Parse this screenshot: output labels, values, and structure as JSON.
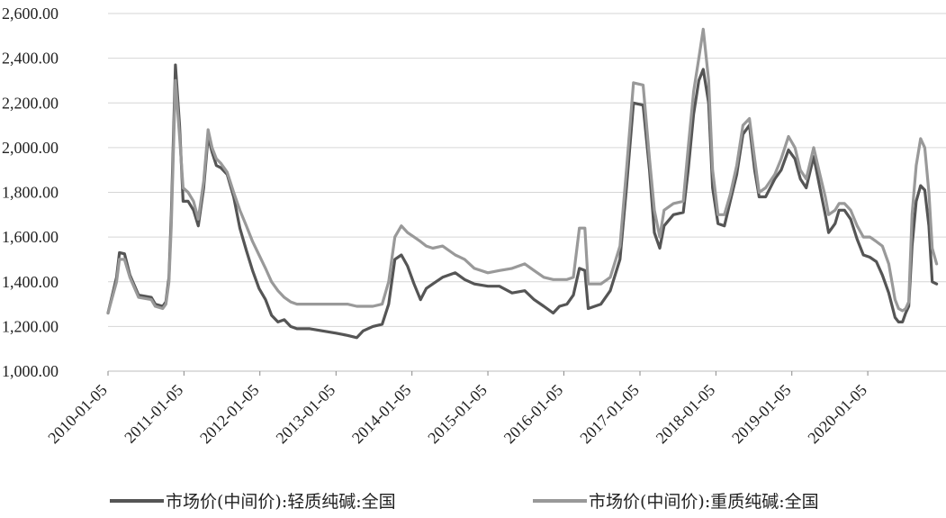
{
  "chart_data": {
    "type": "line",
    "title": "",
    "xlabel": "",
    "ylabel": "",
    "ylim": [
      1000,
      2600
    ],
    "y_ticks": [
      "1,000.00",
      "1,200.00",
      "1,400.00",
      "1,600.00",
      "1,800.00",
      "2,000.00",
      "2,200.00",
      "2,400.00",
      "2,600.00"
    ],
    "x_ticks": [
      "2010-01-05",
      "2011-01-05",
      "2012-01-05",
      "2013-01-05",
      "2014-01-05",
      "2015-01-05",
      "2016-01-05",
      "2017-01-05",
      "2018-01-05",
      "2019-01-05",
      "2020-01-05"
    ],
    "x_range": [
      "2010-01-05",
      "2021-01-15"
    ],
    "grid": true,
    "legend_position": "bottom",
    "series": [
      {
        "name": "市场价(中间价):轻质纯碱:全国",
        "color": "#555555",
        "points": [
          [
            "2010-01-05",
            1260
          ],
          [
            "2010-02-15",
            1420
          ],
          [
            "2010-03-01",
            1530
          ],
          [
            "2010-03-25",
            1525
          ],
          [
            "2010-04-20",
            1430
          ],
          [
            "2010-06-01",
            1340
          ],
          [
            "2010-08-01",
            1330
          ],
          [
            "2010-08-20",
            1300
          ],
          [
            "2010-09-25",
            1290
          ],
          [
            "2010-10-10",
            1310
          ],
          [
            "2010-10-25",
            1420
          ],
          [
            "2010-11-05",
            1700
          ],
          [
            "2010-11-25",
            2370
          ],
          [
            "2010-12-15",
            2100
          ],
          [
            "2011-01-01",
            1760
          ],
          [
            "2011-01-25",
            1760
          ],
          [
            "2011-02-20",
            1720
          ],
          [
            "2011-03-15",
            1650
          ],
          [
            "2011-04-10",
            1820
          ],
          [
            "2011-05-01",
            2050
          ],
          [
            "2011-05-20",
            1980
          ],
          [
            "2011-06-10",
            1920
          ],
          [
            "2011-07-01",
            1910
          ],
          [
            "2011-08-01",
            1880
          ],
          [
            "2011-09-01",
            1780
          ],
          [
            "2011-10-01",
            1640
          ],
          [
            "2011-11-01",
            1540
          ],
          [
            "2011-12-01",
            1450
          ],
          [
            "2012-01-01",
            1370
          ],
          [
            "2012-02-01",
            1320
          ],
          [
            "2012-03-01",
            1250
          ],
          [
            "2012-04-01",
            1220
          ],
          [
            "2012-05-01",
            1230
          ],
          [
            "2012-06-01",
            1200
          ],
          [
            "2012-07-01",
            1190
          ],
          [
            "2012-09-01",
            1190
          ],
          [
            "2012-11-01",
            1180
          ],
          [
            "2013-01-05",
            1170
          ],
          [
            "2013-03-01",
            1160
          ],
          [
            "2013-04-15",
            1150
          ],
          [
            "2013-05-15",
            1180
          ],
          [
            "2013-07-01",
            1200
          ],
          [
            "2013-08-15",
            1210
          ],
          [
            "2013-09-15",
            1300
          ],
          [
            "2013-10-15",
            1500
          ],
          [
            "2013-11-15",
            1520
          ],
          [
            "2013-12-15",
            1470
          ],
          [
            "2014-01-15",
            1390
          ],
          [
            "2014-02-15",
            1320
          ],
          [
            "2014-03-15",
            1370
          ],
          [
            "2014-04-15",
            1390
          ],
          [
            "2014-06-01",
            1420
          ],
          [
            "2014-08-01",
            1440
          ],
          [
            "2014-09-15",
            1410
          ],
          [
            "2014-11-01",
            1390
          ],
          [
            "2015-01-05",
            1380
          ],
          [
            "2015-03-01",
            1380
          ],
          [
            "2015-05-01",
            1350
          ],
          [
            "2015-07-01",
            1360
          ],
          [
            "2015-08-15",
            1320
          ],
          [
            "2015-10-01",
            1290
          ],
          [
            "2015-11-15",
            1260
          ],
          [
            "2015-12-15",
            1290
          ],
          [
            "2016-01-20",
            1300
          ],
          [
            "2016-02-20",
            1340
          ],
          [
            "2016-03-20",
            1460
          ],
          [
            "2016-04-15",
            1450
          ],
          [
            "2016-05-01",
            1280
          ],
          [
            "2016-07-01",
            1300
          ],
          [
            "2016-08-15",
            1360
          ],
          [
            "2016-10-01",
            1500
          ],
          [
            "2016-11-01",
            1820
          ],
          [
            "2016-12-05",
            2200
          ],
          [
            "2017-01-20",
            2190
          ],
          [
            "2017-02-20",
            1900
          ],
          [
            "2017-03-15",
            1620
          ],
          [
            "2017-04-10",
            1550
          ],
          [
            "2017-05-01",
            1650
          ],
          [
            "2017-06-15",
            1700
          ],
          [
            "2017-08-01",
            1710
          ],
          [
            "2017-08-25",
            1900
          ],
          [
            "2017-09-20",
            2150
          ],
          [
            "2017-10-15",
            2300
          ],
          [
            "2017-11-05",
            2350
          ],
          [
            "2017-12-01",
            2200
          ],
          [
            "2017-12-20",
            1820
          ],
          [
            "2018-01-15",
            1660
          ],
          [
            "2018-02-15",
            1650
          ],
          [
            "2018-03-15",
            1760
          ],
          [
            "2018-04-15",
            1880
          ],
          [
            "2018-05-15",
            2060
          ],
          [
            "2018-06-15",
            2100
          ],
          [
            "2018-07-10",
            1900
          ],
          [
            "2018-08-01",
            1780
          ],
          [
            "2018-09-01",
            1780
          ],
          [
            "2018-10-15",
            1860
          ],
          [
            "2018-11-15",
            1900
          ],
          [
            "2018-12-20",
            1990
          ],
          [
            "2019-01-20",
            1950
          ],
          [
            "2019-02-15",
            1860
          ],
          [
            "2019-03-15",
            1820
          ],
          [
            "2019-04-20",
            1960
          ],
          [
            "2019-05-20",
            1820
          ],
          [
            "2019-06-15",
            1700
          ],
          [
            "2019-07-01",
            1620
          ],
          [
            "2019-08-01",
            1660
          ],
          [
            "2019-08-20",
            1720
          ],
          [
            "2019-09-15",
            1720
          ],
          [
            "2019-10-15",
            1680
          ],
          [
            "2019-11-15",
            1590
          ],
          [
            "2019-12-15",
            1520
          ],
          [
            "2020-01-15",
            1510
          ],
          [
            "2020-02-15",
            1490
          ],
          [
            "2020-03-15",
            1430
          ],
          [
            "2020-04-15",
            1350
          ],
          [
            "2020-05-15",
            1240
          ],
          [
            "2020-06-01",
            1220
          ],
          [
            "2020-06-20",
            1220
          ],
          [
            "2020-07-05",
            1260
          ],
          [
            "2020-07-20",
            1290
          ],
          [
            "2020-08-05",
            1560
          ],
          [
            "2020-08-25",
            1760
          ],
          [
            "2020-09-15",
            1830
          ],
          [
            "2020-10-05",
            1810
          ],
          [
            "2020-10-25",
            1650
          ],
          [
            "2020-11-10",
            1400
          ],
          [
            "2020-12-01",
            1390
          ]
        ]
      },
      {
        "name": "市场价(中间价):重质纯碱:全国",
        "color": "#999999",
        "points": [
          [
            "2010-01-05",
            1260
          ],
          [
            "2010-02-15",
            1400
          ],
          [
            "2010-03-01",
            1500
          ],
          [
            "2010-03-25",
            1500
          ],
          [
            "2010-04-20",
            1420
          ],
          [
            "2010-06-01",
            1330
          ],
          [
            "2010-08-01",
            1320
          ],
          [
            "2010-08-20",
            1290
          ],
          [
            "2010-09-25",
            1280
          ],
          [
            "2010-10-10",
            1300
          ],
          [
            "2010-10-25",
            1400
          ],
          [
            "2010-11-05",
            1650
          ],
          [
            "2010-11-25",
            2300
          ],
          [
            "2010-12-15",
            2050
          ],
          [
            "2011-01-01",
            1820
          ],
          [
            "2011-01-25",
            1800
          ],
          [
            "2011-02-20",
            1760
          ],
          [
            "2011-03-15",
            1680
          ],
          [
            "2011-04-10",
            1850
          ],
          [
            "2011-05-01",
            2080
          ],
          [
            "2011-05-20",
            2000
          ],
          [
            "2011-06-10",
            1950
          ],
          [
            "2011-07-01",
            1930
          ],
          [
            "2011-08-01",
            1890
          ],
          [
            "2011-09-01",
            1800
          ],
          [
            "2011-10-01",
            1720
          ],
          [
            "2011-11-01",
            1650
          ],
          [
            "2011-12-01",
            1580
          ],
          [
            "2012-01-01",
            1520
          ],
          [
            "2012-02-01",
            1460
          ],
          [
            "2012-03-01",
            1400
          ],
          [
            "2012-04-01",
            1360
          ],
          [
            "2012-05-01",
            1330
          ],
          [
            "2012-06-01",
            1310
          ],
          [
            "2012-07-01",
            1300
          ],
          [
            "2012-09-01",
            1300
          ],
          [
            "2012-11-01",
            1300
          ],
          [
            "2013-01-05",
            1300
          ],
          [
            "2013-03-01",
            1300
          ],
          [
            "2013-04-15",
            1290
          ],
          [
            "2013-05-15",
            1290
          ],
          [
            "2013-07-01",
            1290
          ],
          [
            "2013-08-15",
            1300
          ],
          [
            "2013-09-15",
            1400
          ],
          [
            "2013-10-15",
            1600
          ],
          [
            "2013-11-15",
            1650
          ],
          [
            "2013-12-15",
            1620
          ],
          [
            "2014-01-15",
            1600
          ],
          [
            "2014-02-15",
            1580
          ],
          [
            "2014-03-15",
            1560
          ],
          [
            "2014-04-15",
            1550
          ],
          [
            "2014-06-01",
            1560
          ],
          [
            "2014-08-01",
            1520
          ],
          [
            "2014-09-15",
            1500
          ],
          [
            "2014-11-01",
            1460
          ],
          [
            "2015-01-05",
            1440
          ],
          [
            "2015-03-01",
            1450
          ],
          [
            "2015-05-01",
            1460
          ],
          [
            "2015-07-01",
            1480
          ],
          [
            "2015-08-15",
            1450
          ],
          [
            "2015-10-01",
            1420
          ],
          [
            "2015-11-15",
            1410
          ],
          [
            "2015-12-15",
            1410
          ],
          [
            "2016-01-20",
            1410
          ],
          [
            "2016-02-20",
            1420
          ],
          [
            "2016-03-20",
            1640
          ],
          [
            "2016-04-15",
            1640
          ],
          [
            "2016-05-01",
            1390
          ],
          [
            "2016-07-01",
            1390
          ],
          [
            "2016-08-15",
            1420
          ],
          [
            "2016-10-01",
            1560
          ],
          [
            "2016-11-01",
            1900
          ],
          [
            "2016-12-05",
            2290
          ],
          [
            "2017-01-20",
            2280
          ],
          [
            "2017-02-20",
            1950
          ],
          [
            "2017-03-15",
            1720
          ],
          [
            "2017-04-10",
            1600
          ],
          [
            "2017-05-01",
            1720
          ],
          [
            "2017-06-15",
            1750
          ],
          [
            "2017-08-01",
            1760
          ],
          [
            "2017-08-25",
            2000
          ],
          [
            "2017-09-20",
            2250
          ],
          [
            "2017-10-15",
            2400
          ],
          [
            "2017-11-05",
            2530
          ],
          [
            "2017-12-01",
            2300
          ],
          [
            "2017-12-20",
            1900
          ],
          [
            "2018-01-15",
            1700
          ],
          [
            "2018-02-15",
            1700
          ],
          [
            "2018-03-15",
            1790
          ],
          [
            "2018-04-15",
            1920
          ],
          [
            "2018-05-15",
            2100
          ],
          [
            "2018-06-15",
            2130
          ],
          [
            "2018-07-10",
            1950
          ],
          [
            "2018-08-01",
            1800
          ],
          [
            "2018-09-01",
            1820
          ],
          [
            "2018-10-15",
            1880
          ],
          [
            "2018-11-15",
            1950
          ],
          [
            "2018-12-20",
            2050
          ],
          [
            "2019-01-20",
            2000
          ],
          [
            "2019-02-15",
            1900
          ],
          [
            "2019-03-15",
            1860
          ],
          [
            "2019-04-20",
            2000
          ],
          [
            "2019-05-20",
            1880
          ],
          [
            "2019-06-15",
            1780
          ],
          [
            "2019-07-01",
            1700
          ],
          [
            "2019-08-01",
            1720
          ],
          [
            "2019-08-20",
            1750
          ],
          [
            "2019-09-15",
            1750
          ],
          [
            "2019-10-15",
            1720
          ],
          [
            "2019-11-15",
            1650
          ],
          [
            "2019-12-15",
            1600
          ],
          [
            "2020-01-15",
            1600
          ],
          [
            "2020-02-15",
            1580
          ],
          [
            "2020-03-15",
            1560
          ],
          [
            "2020-04-15",
            1480
          ],
          [
            "2020-05-15",
            1320
          ],
          [
            "2020-06-01",
            1280
          ],
          [
            "2020-06-20",
            1270
          ],
          [
            "2020-07-05",
            1280
          ],
          [
            "2020-07-20",
            1310
          ],
          [
            "2020-08-05",
            1700
          ],
          [
            "2020-08-25",
            1920
          ],
          [
            "2020-09-15",
            2040
          ],
          [
            "2020-10-05",
            2000
          ],
          [
            "2020-10-25",
            1800
          ],
          [
            "2020-11-10",
            1550
          ],
          [
            "2020-12-01",
            1480
          ]
        ]
      }
    ]
  }
}
